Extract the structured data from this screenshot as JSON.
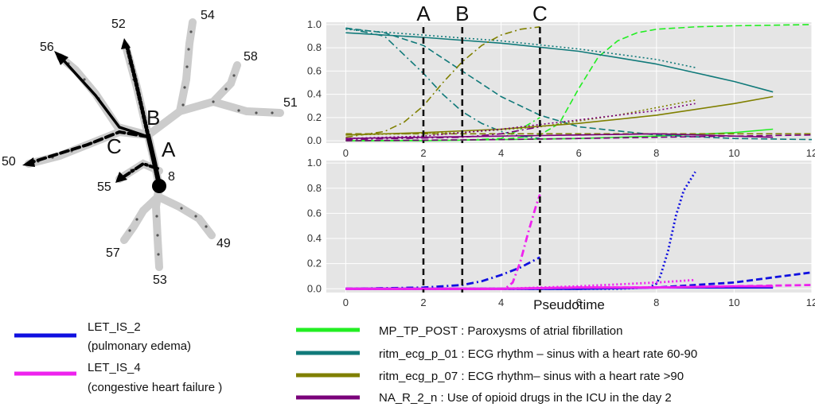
{
  "tree": {
    "node_labels": [
      "56",
      "52",
      "54",
      "58",
      "51",
      "50",
      "55",
      "8",
      "57",
      "53",
      "49"
    ],
    "path_letters": [
      "A",
      "B",
      "C"
    ]
  },
  "chart_data": [
    {
      "type": "line",
      "panel": "top",
      "xlim": [
        -0.5,
        12
      ],
      "ylim": [
        -0.02,
        1.02
      ],
      "xticks": [
        "0",
        "2",
        "4",
        "6",
        "8",
        "10",
        "12"
      ],
      "yticks": [
        "0.0",
        "0.2",
        "0.4",
        "0.6",
        "0.8",
        "1.0"
      ],
      "xlabel": "",
      "grid": true,
      "vlines": [
        {
          "label": "A",
          "x": 2
        },
        {
          "label": "B",
          "x": 3
        },
        {
          "label": "C",
          "x": 5
        }
      ],
      "series": [
        {
          "name": "MP_TP_POST",
          "color": "#22ee22",
          "style": "solid",
          "x": [
            0,
            2,
            4,
            6,
            8,
            10,
            11
          ],
          "y": [
            0.0,
            0.0,
            0.01,
            0.02,
            0.04,
            0.07,
            0.1
          ]
        },
        {
          "name": "MP_TP_POST",
          "color": "#22ee22",
          "style": "dashed",
          "x": [
            0,
            4,
            5,
            5.5,
            6,
            6.5,
            7,
            7.5,
            8,
            9,
            10,
            11,
            12
          ],
          "y": [
            0.0,
            0.01,
            0.05,
            0.15,
            0.45,
            0.72,
            0.86,
            0.93,
            0.96,
            0.98,
            0.99,
            0.995,
            1.0
          ]
        },
        {
          "name": "MP_TP_POST",
          "color": "#22ee22",
          "style": "dashdot",
          "x": [
            0,
            3,
            4,
            4.5,
            5
          ],
          "y": [
            0.0,
            0.005,
            0.02,
            0.1,
            0.2
          ]
        },
        {
          "name": "ritm_ecg_p_01",
          "color": "#117a7a",
          "style": "solid",
          "x": [
            0,
            2,
            4,
            6,
            8,
            10,
            11
          ],
          "y": [
            0.93,
            0.89,
            0.84,
            0.77,
            0.66,
            0.51,
            0.42
          ]
        },
        {
          "name": "ritm_ecg_p_01",
          "color": "#117a7a",
          "style": "dotted",
          "x": [
            0,
            2,
            4,
            6,
            8,
            9
          ],
          "y": [
            0.96,
            0.91,
            0.86,
            0.79,
            0.7,
            0.63
          ]
        },
        {
          "name": "ritm_ecg_p_01",
          "color": "#117a7a",
          "style": "dashed",
          "x": [
            0,
            1,
            2,
            3,
            4,
            5,
            6,
            8,
            10,
            12
          ],
          "y": [
            0.97,
            0.93,
            0.82,
            0.6,
            0.38,
            0.22,
            0.12,
            0.05,
            0.02,
            0.01
          ]
        },
        {
          "name": "ritm_ecg_p_01",
          "color": "#117a7a",
          "style": "dashdot",
          "x": [
            0,
            1,
            2,
            2.5,
            3,
            3.5,
            4,
            4.5,
            5
          ],
          "y": [
            0.97,
            0.9,
            0.58,
            0.4,
            0.25,
            0.15,
            0.08,
            0.04,
            0.02
          ]
        },
        {
          "name": "ritm_ecg_p_07",
          "color": "#808000",
          "style": "solid",
          "x": [
            0,
            2,
            4,
            6,
            8,
            10,
            11
          ],
          "y": [
            0.05,
            0.07,
            0.1,
            0.15,
            0.22,
            0.32,
            0.38
          ]
        },
        {
          "name": "ritm_ecg_p_07",
          "color": "#808000",
          "style": "dotted",
          "x": [
            0,
            3,
            5,
            7,
            9
          ],
          "y": [
            0.05,
            0.07,
            0.12,
            0.22,
            0.35
          ]
        },
        {
          "name": "ritm_ecg_p_07",
          "color": "#808000",
          "style": "dashed",
          "x": [
            0,
            2,
            4,
            6,
            8,
            10,
            12
          ],
          "y": [
            0.06,
            0.06,
            0.06,
            0.06,
            0.06,
            0.06,
            0.06
          ]
        },
        {
          "name": "ritm_ecg_p_07",
          "color": "#808000",
          "style": "dashdot",
          "x": [
            0,
            1,
            1.5,
            2,
            2.5,
            3,
            3.5,
            4,
            4.5,
            5
          ],
          "y": [
            0.03,
            0.08,
            0.16,
            0.3,
            0.5,
            0.68,
            0.82,
            0.91,
            0.96,
            0.98
          ]
        },
        {
          "name": "NA_R_2_n",
          "color": "#7a007a",
          "style": "solid",
          "x": [
            0,
            2,
            4,
            6,
            8,
            10,
            11
          ],
          "y": [
            0.02,
            0.03,
            0.04,
            0.05,
            0.06,
            0.04,
            0.03
          ]
        },
        {
          "name": "NA_R_2_n",
          "color": "#7a007a",
          "style": "dotted",
          "x": [
            0,
            2,
            4,
            6,
            8,
            9
          ],
          "y": [
            0.02,
            0.04,
            0.1,
            0.18,
            0.26,
            0.32
          ]
        },
        {
          "name": "NA_R_2_n",
          "color": "#7a007a",
          "style": "dashed",
          "x": [
            0,
            4,
            6,
            8,
            10,
            12
          ],
          "y": [
            0.0,
            0.01,
            0.02,
            0.03,
            0.04,
            0.05
          ]
        },
        {
          "name": "NA_R_2_n",
          "color": "#7a007a",
          "style": "dashdot",
          "x": [
            0,
            3,
            4,
            4.5,
            5
          ],
          "y": [
            0.01,
            0.03,
            0.06,
            0.09,
            0.12
          ]
        }
      ]
    },
    {
      "type": "line",
      "panel": "bottom",
      "xlim": [
        -0.5,
        12
      ],
      "ylim": [
        -0.03,
        1.02
      ],
      "xticks": [
        "0",
        "2",
        "4",
        "6",
        "8",
        "10",
        "12"
      ],
      "yticks": [
        "0.0",
        "0.2",
        "0.4",
        "0.6",
        "0.8",
        "1.0"
      ],
      "xlabel": "Pseudotime",
      "grid": true,
      "vlines": [
        {
          "label": "A",
          "x": 2
        },
        {
          "label": "B",
          "x": 3
        },
        {
          "label": "C",
          "x": 5
        }
      ],
      "series": [
        {
          "name": "LET_IS_2",
          "color": "#1010e0",
          "style": "solid",
          "x": [
            0,
            4,
            6,
            8,
            10,
            11
          ],
          "y": [
            0.0,
            0.0,
            0.0,
            0.01,
            0.01,
            0.01
          ]
        },
        {
          "name": "LET_IS_2",
          "color": "#1010e0",
          "style": "dotted",
          "x": [
            0,
            7,
            7.8,
            8.0,
            8.1,
            8.3,
            8.5,
            8.7,
            8.9,
            9.0
          ],
          "y": [
            0.0,
            0.0,
            0.01,
            0.04,
            0.1,
            0.3,
            0.58,
            0.78,
            0.88,
            0.93
          ]
        },
        {
          "name": "LET_IS_2",
          "color": "#1010e0",
          "style": "dashed",
          "x": [
            0,
            4,
            6,
            8,
            9,
            10,
            11,
            12
          ],
          "y": [
            0.0,
            0.0,
            0.0,
            0.01,
            0.03,
            0.05,
            0.09,
            0.13
          ]
        },
        {
          "name": "LET_IS_2",
          "color": "#1010e0",
          "style": "dashdot",
          "x": [
            0,
            2,
            3,
            3.5,
            4,
            4.5,
            5
          ],
          "y": [
            0.0,
            0.01,
            0.03,
            0.06,
            0.11,
            0.17,
            0.25
          ]
        },
        {
          "name": "LET_IS_4",
          "color": "#ee22ee",
          "style": "solid",
          "x": [
            0,
            4,
            6,
            8,
            10,
            11
          ],
          "y": [
            0.0,
            0.0,
            0.01,
            0.01,
            0.02,
            0.02
          ]
        },
        {
          "name": "LET_IS_4",
          "color": "#ee22ee",
          "style": "dotted",
          "x": [
            0,
            4,
            6,
            8,
            9
          ],
          "y": [
            0.0,
            0.0,
            0.02,
            0.05,
            0.07
          ]
        },
        {
          "name": "LET_IS_4",
          "color": "#ee22ee",
          "style": "dashed",
          "x": [
            0,
            4,
            6,
            8,
            10,
            12
          ],
          "y": [
            0.0,
            0.0,
            0.01,
            0.01,
            0.02,
            0.03
          ]
        },
        {
          "name": "LET_IS_4",
          "color": "#ee22ee",
          "style": "dashdot",
          "x": [
            0,
            4.1,
            4.3,
            4.5,
            4.7,
            4.9,
            5.0
          ],
          "y": [
            0.0,
            0.0,
            0.05,
            0.22,
            0.45,
            0.66,
            0.75
          ]
        }
      ]
    }
  ],
  "legend": [
    {
      "name": "LET_IS_2",
      "text1": "LET_IS_2",
      "text2": "(pulmonary edema)",
      "color": "#1010e0"
    },
    {
      "name": "LET_IS_4",
      "text1": "LET_IS_4",
      "text2": "(congestive heart failure )",
      "color": "#ee22ee"
    },
    {
      "name": "MP_TP_POST",
      "text1": "MP_TP_POST : Paroxysms of atrial fibrillation",
      "color": "#22ee22"
    },
    {
      "name": "ritm_ecg_p_01",
      "text1": "ritm_ecg_p_01 : ECG rhythm – sinus with a heart rate 60-90",
      "color": "#117a7a"
    },
    {
      "name": "ritm_ecg_p_07",
      "text1": "ritm_ecg_p_07 : ECG rhythm– sinus with a heart rate >90",
      "color": "#808000"
    },
    {
      "name": "NA_R_2_n",
      "text1": "NA_R_2_n : Use of opioid drugs in the ICU in the day 2",
      "color": "#7a007a"
    }
  ]
}
